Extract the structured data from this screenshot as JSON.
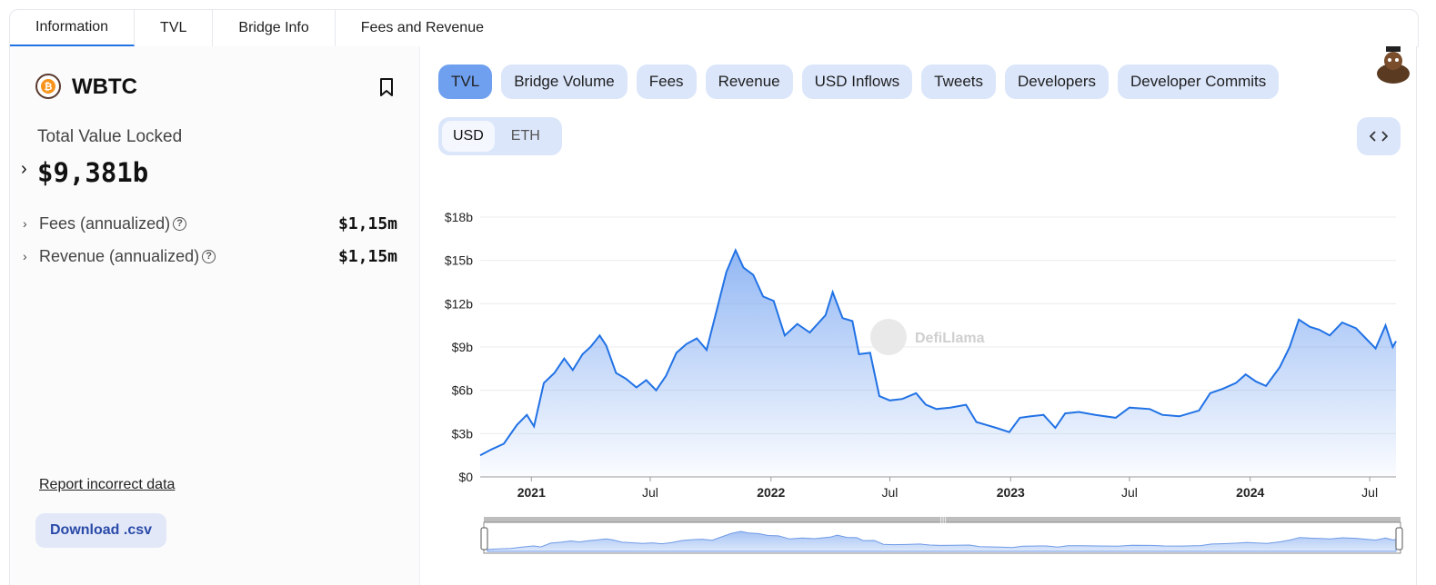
{
  "tabs": [
    {
      "label": "Information",
      "active": true
    },
    {
      "label": "TVL",
      "active": false
    },
    {
      "label": "Bridge Info",
      "active": false
    },
    {
      "label": "Fees and Revenue",
      "active": false
    }
  ],
  "protocol": {
    "name": "WBTC",
    "logo_icon": "bitcoin-icon",
    "tvl_label": "Total Value Locked",
    "tvl_value": "$9,381b",
    "fees_label": "Fees (annualized)",
    "fees_value": "$1,15m",
    "revenue_label": "Revenue (annualized)",
    "revenue_value": "$1,15m",
    "report_link": "Report incorrect data",
    "download_button": "Download .csv"
  },
  "chart_tabs": [
    {
      "label": "TVL",
      "active": true
    },
    {
      "label": "Bridge Volume",
      "active": false
    },
    {
      "label": "Fees",
      "active": false
    },
    {
      "label": "Revenue",
      "active": false
    },
    {
      "label": "USD Inflows",
      "active": false
    },
    {
      "label": "Tweets",
      "active": false
    },
    {
      "label": "Developers",
      "active": false
    },
    {
      "label": "Developer Commits",
      "active": false
    }
  ],
  "denomination": {
    "usd": "USD",
    "eth": "ETH",
    "selected": "USD"
  },
  "watermark": "DefiLlama",
  "colors": {
    "line": "#2172e5",
    "accent": "#6fa0f0",
    "pill_bg": "#dbe6fb"
  },
  "chart_data": {
    "type": "area",
    "title": "",
    "xlabel": "",
    "ylabel": "",
    "ylim": [
      0,
      18
    ],
    "y_unit": "billions USD",
    "y_ticks": [
      "$0",
      "$3b",
      "$6b",
      "$9b",
      "$12b",
      "$15b",
      "$18b"
    ],
    "x_ticks": [
      {
        "label": "2021",
        "bold": true,
        "date": "2021-01-01"
      },
      {
        "label": "Jul",
        "bold": false,
        "date": "2021-07-01"
      },
      {
        "label": "2022",
        "bold": true,
        "date": "2022-01-01"
      },
      {
        "label": "Jul",
        "bold": false,
        "date": "2022-07-01"
      },
      {
        "label": "2023",
        "bold": true,
        "date": "2023-01-01"
      },
      {
        "label": "Jul",
        "bold": false,
        "date": "2023-07-01"
      },
      {
        "label": "2024",
        "bold": true,
        "date": "2024-01-01"
      },
      {
        "label": "Jul",
        "bold": false,
        "date": "2024-07-01"
      }
    ],
    "grid": true,
    "series": [
      {
        "points": [
          [
            "2020-10-15",
            1.5
          ],
          [
            "2020-11-01",
            1.9
          ],
          [
            "2020-11-20",
            2.3
          ],
          [
            "2020-12-10",
            3.6
          ],
          [
            "2020-12-25",
            4.3
          ],
          [
            "2021-01-05",
            3.5
          ],
          [
            "2021-01-20",
            6.5
          ],
          [
            "2021-02-05",
            7.2
          ],
          [
            "2021-02-20",
            8.2
          ],
          [
            "2021-03-05",
            7.4
          ],
          [
            "2021-03-20",
            8.5
          ],
          [
            "2021-04-01",
            9.0
          ],
          [
            "2021-04-15",
            9.8
          ],
          [
            "2021-04-25",
            9.1
          ],
          [
            "2021-05-10",
            7.2
          ],
          [
            "2021-05-25",
            6.8
          ],
          [
            "2021-06-10",
            6.2
          ],
          [
            "2021-06-25",
            6.7
          ],
          [
            "2021-07-10",
            6.0
          ],
          [
            "2021-07-25",
            7.0
          ],
          [
            "2021-08-10",
            8.6
          ],
          [
            "2021-08-25",
            9.2
          ],
          [
            "2021-09-10",
            9.6
          ],
          [
            "2021-09-25",
            8.8
          ],
          [
            "2021-10-10",
            11.5
          ],
          [
            "2021-10-25",
            14.2
          ],
          [
            "2021-11-08",
            15.7
          ],
          [
            "2021-11-20",
            14.5
          ],
          [
            "2021-12-05",
            14.0
          ],
          [
            "2021-12-20",
            12.5
          ],
          [
            "2022-01-05",
            12.2
          ],
          [
            "2022-01-22",
            9.8
          ],
          [
            "2022-02-10",
            10.6
          ],
          [
            "2022-03-01",
            10.0
          ],
          [
            "2022-03-25",
            11.2
          ],
          [
            "2022-04-05",
            12.8
          ],
          [
            "2022-04-20",
            11.0
          ],
          [
            "2022-05-05",
            10.8
          ],
          [
            "2022-05-15",
            8.5
          ],
          [
            "2022-06-01",
            8.6
          ],
          [
            "2022-06-15",
            5.6
          ],
          [
            "2022-07-01",
            5.3
          ],
          [
            "2022-07-20",
            5.4
          ],
          [
            "2022-08-10",
            5.8
          ],
          [
            "2022-08-25",
            5.0
          ],
          [
            "2022-09-10",
            4.7
          ],
          [
            "2022-10-01",
            4.8
          ],
          [
            "2022-10-25",
            5.0
          ],
          [
            "2022-11-10",
            3.8
          ],
          [
            "2022-11-25",
            3.6
          ],
          [
            "2022-12-10",
            3.4
          ],
          [
            "2022-12-30",
            3.1
          ],
          [
            "2023-01-15",
            4.1
          ],
          [
            "2023-02-01",
            4.2
          ],
          [
            "2023-02-20",
            4.3
          ],
          [
            "2023-03-10",
            3.4
          ],
          [
            "2023-03-25",
            4.4
          ],
          [
            "2023-04-15",
            4.5
          ],
          [
            "2023-05-10",
            4.3
          ],
          [
            "2023-06-10",
            4.1
          ],
          [
            "2023-07-01",
            4.8
          ],
          [
            "2023-08-01",
            4.7
          ],
          [
            "2023-08-20",
            4.3
          ],
          [
            "2023-09-15",
            4.2
          ],
          [
            "2023-10-15",
            4.6
          ],
          [
            "2023-11-01",
            5.8
          ],
          [
            "2023-11-20",
            6.1
          ],
          [
            "2023-12-10",
            6.5
          ],
          [
            "2023-12-25",
            7.1
          ],
          [
            "2024-01-10",
            6.6
          ],
          [
            "2024-01-25",
            6.3
          ],
          [
            "2024-02-15",
            7.6
          ],
          [
            "2024-03-01",
            9.0
          ],
          [
            "2024-03-15",
            10.9
          ],
          [
            "2024-04-01",
            10.4
          ],
          [
            "2024-04-15",
            10.2
          ],
          [
            "2024-05-01",
            9.8
          ],
          [
            "2024-05-20",
            10.7
          ],
          [
            "2024-06-10",
            10.3
          ],
          [
            "2024-06-25",
            9.6
          ],
          [
            "2024-07-10",
            8.9
          ],
          [
            "2024-07-25",
            10.5
          ],
          [
            "2024-08-05",
            9.0
          ],
          [
            "2024-08-10",
            9.4
          ]
        ]
      }
    ]
  }
}
